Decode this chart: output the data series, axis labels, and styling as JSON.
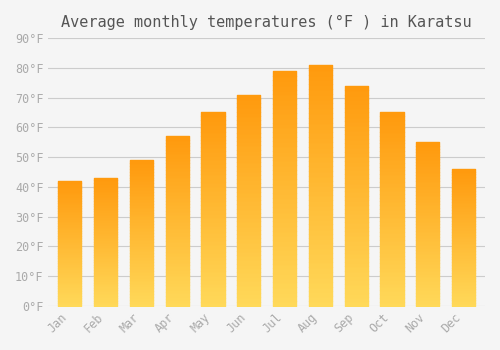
{
  "title": "Average monthly temperatures (°F ) in Karatsu",
  "months": [
    "Jan",
    "Feb",
    "Mar",
    "Apr",
    "May",
    "Jun",
    "Jul",
    "Aug",
    "Sep",
    "Oct",
    "Nov",
    "Dec"
  ],
  "values": [
    42,
    43,
    49,
    57,
    65,
    71,
    79,
    81,
    74,
    65,
    55,
    46
  ],
  "bar_color_top": "#FFA500",
  "bar_color_bottom": "#FFD060",
  "ylim": [
    0,
    90
  ],
  "yticks": [
    0,
    10,
    20,
    30,
    40,
    50,
    60,
    70,
    80,
    90
  ],
  "ytick_labels": [
    "0°F",
    "10°F",
    "20°F",
    "30°F",
    "40°F",
    "50°F",
    "60°F",
    "70°F",
    "80°F",
    "90°F"
  ],
  "background_color": "#F5F5F5",
  "grid_color": "#CCCCCC",
  "font_color": "#AAAAAA",
  "title_font_color": "#555555",
  "title_fontsize": 11,
  "tick_fontsize": 8.5
}
